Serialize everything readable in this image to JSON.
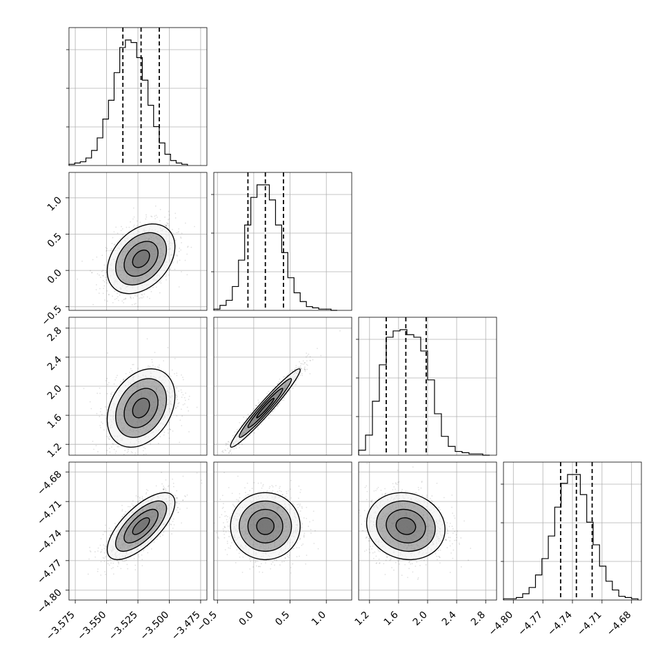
{
  "chart_data": {
    "type": "corner",
    "parameters": [
      {
        "index": 0,
        "mean": -3.5225,
        "std": 0.0135,
        "range": [
          -3.58,
          -3.47
        ],
        "ticks": [
          -3.575,
          -3.55,
          -3.525,
          -3.5,
          -3.475
        ],
        "tick_labels": [
          "−3.575",
          "−3.550",
          "−3.525",
          "−3.500",
          "−3.475"
        ],
        "quantiles": [
          -3.537,
          -3.5225,
          -3.508
        ]
      },
      {
        "index": 1,
        "mean": 0.16,
        "std": 0.24,
        "range": [
          -0.55,
          1.35
        ],
        "ticks": [
          -0.5,
          0.0,
          0.5,
          1.0
        ],
        "tick_labels": [
          "−0.5",
          "0.0",
          "0.5",
          "1.0"
        ],
        "quantiles": [
          -0.08,
          0.16,
          0.41
        ]
      },
      {
        "index": 2,
        "mean": 1.7,
        "std": 0.27,
        "range": [
          1.05,
          2.95
        ],
        "ticks": [
          1.2,
          1.6,
          2.0,
          2.4,
          2.8
        ],
        "tick_labels": [
          "1.2",
          "1.6",
          "2.0",
          "2.4",
          "2.8"
        ],
        "quantiles": [
          1.43,
          1.7,
          1.98
        ]
      },
      {
        "index": 3,
        "mean": -4.735,
        "std": 0.017,
        "range": [
          -4.81,
          -4.67
        ],
        "ticks": [
          -4.8,
          -4.77,
          -4.74,
          -4.71,
          -4.68
        ],
        "tick_labels": [
          "−4.80",
          "−4.77",
          "−4.74",
          "−4.71",
          "−4.68"
        ],
        "quantiles": [
          -4.752,
          -4.736,
          -4.72
        ]
      }
    ],
    "histograms": [
      {
        "param": 0,
        "bin_edges": [
          -3.58,
          -3.5755,
          -3.571,
          -3.5665,
          -3.562,
          -3.5575,
          -3.553,
          -3.5485,
          -3.544,
          -3.5395,
          -3.535,
          -3.5305,
          -3.526,
          -3.5215,
          -3.517,
          -3.5125,
          -3.508,
          -3.5035,
          -3.499,
          -3.4945,
          -3.49,
          -3.4855
        ],
        "counts": [
          1,
          2,
          3,
          6,
          12,
          22,
          37,
          52,
          74,
          94,
          100,
          98,
          86,
          68,
          48,
          31,
          18,
          9,
          4,
          2,
          1
        ]
      },
      {
        "param": 1,
        "bin_edges": [
          -0.55,
          -0.465,
          -0.38,
          -0.295,
          -0.21,
          -0.125,
          -0.04,
          0.045,
          0.13,
          0.215,
          0.3,
          0.385,
          0.47,
          0.555,
          0.64,
          0.725,
          0.81,
          0.895,
          0.98,
          1.065,
          1.15
        ],
        "counts": [
          1,
          4,
          8,
          19,
          40,
          68,
          90,
          100,
          100,
          88,
          68,
          46,
          26,
          14,
          7,
          3,
          2,
          1,
          1,
          0
        ]
      },
      {
        "param": 2,
        "bin_edges": [
          1.05,
          1.145,
          1.24,
          1.335,
          1.43,
          1.525,
          1.62,
          1.715,
          1.81,
          1.905,
          2.0,
          2.095,
          2.19,
          2.285,
          2.38,
          2.475,
          2.57,
          2.665,
          2.76,
          2.855
        ],
        "counts": [
          4,
          16,
          43,
          72,
          94,
          99,
          100,
          96,
          94,
          83,
          60,
          33,
          15,
          7,
          3,
          2,
          1,
          1,
          0
        ]
      },
      {
        "param": 3,
        "bin_edges": [
          -4.81,
          -4.8035,
          -4.797,
          -4.7905,
          -4.784,
          -4.7775,
          -4.771,
          -4.7645,
          -4.758,
          -4.7515,
          -4.745,
          -4.7385,
          -4.732,
          -4.7255,
          -4.719,
          -4.7125,
          -4.706,
          -4.6995,
          -4.693,
          -4.6865,
          -4.68,
          -4.6735
        ],
        "counts": [
          1,
          1,
          2,
          5,
          10,
          20,
          33,
          51,
          74,
          93,
          100,
          100,
          84,
          62,
          44,
          27,
          15,
          8,
          3,
          2,
          1
        ]
      }
    ],
    "pairs": [
      {
        "x_param": 0,
        "y_param": 1,
        "correlation": 0.35
      },
      {
        "x_param": 0,
        "y_param": 2,
        "correlation": 0.3
      },
      {
        "x_param": 1,
        "y_param": 2,
        "correlation": 0.97
      },
      {
        "x_param": 0,
        "y_param": 3,
        "correlation": 0.7
      },
      {
        "x_param": 1,
        "y_param": 3,
        "correlation": 0.0
      },
      {
        "x_param": 2,
        "y_param": 3,
        "correlation": -0.1
      }
    ],
    "contour_levels_sigma": [
      0.5,
      1.0,
      1.5,
      2.0
    ],
    "grid": true,
    "colors": {
      "lines": "#000000",
      "grid": "#b0b0b0",
      "density": "#000000",
      "background": "#ffffff"
    }
  }
}
